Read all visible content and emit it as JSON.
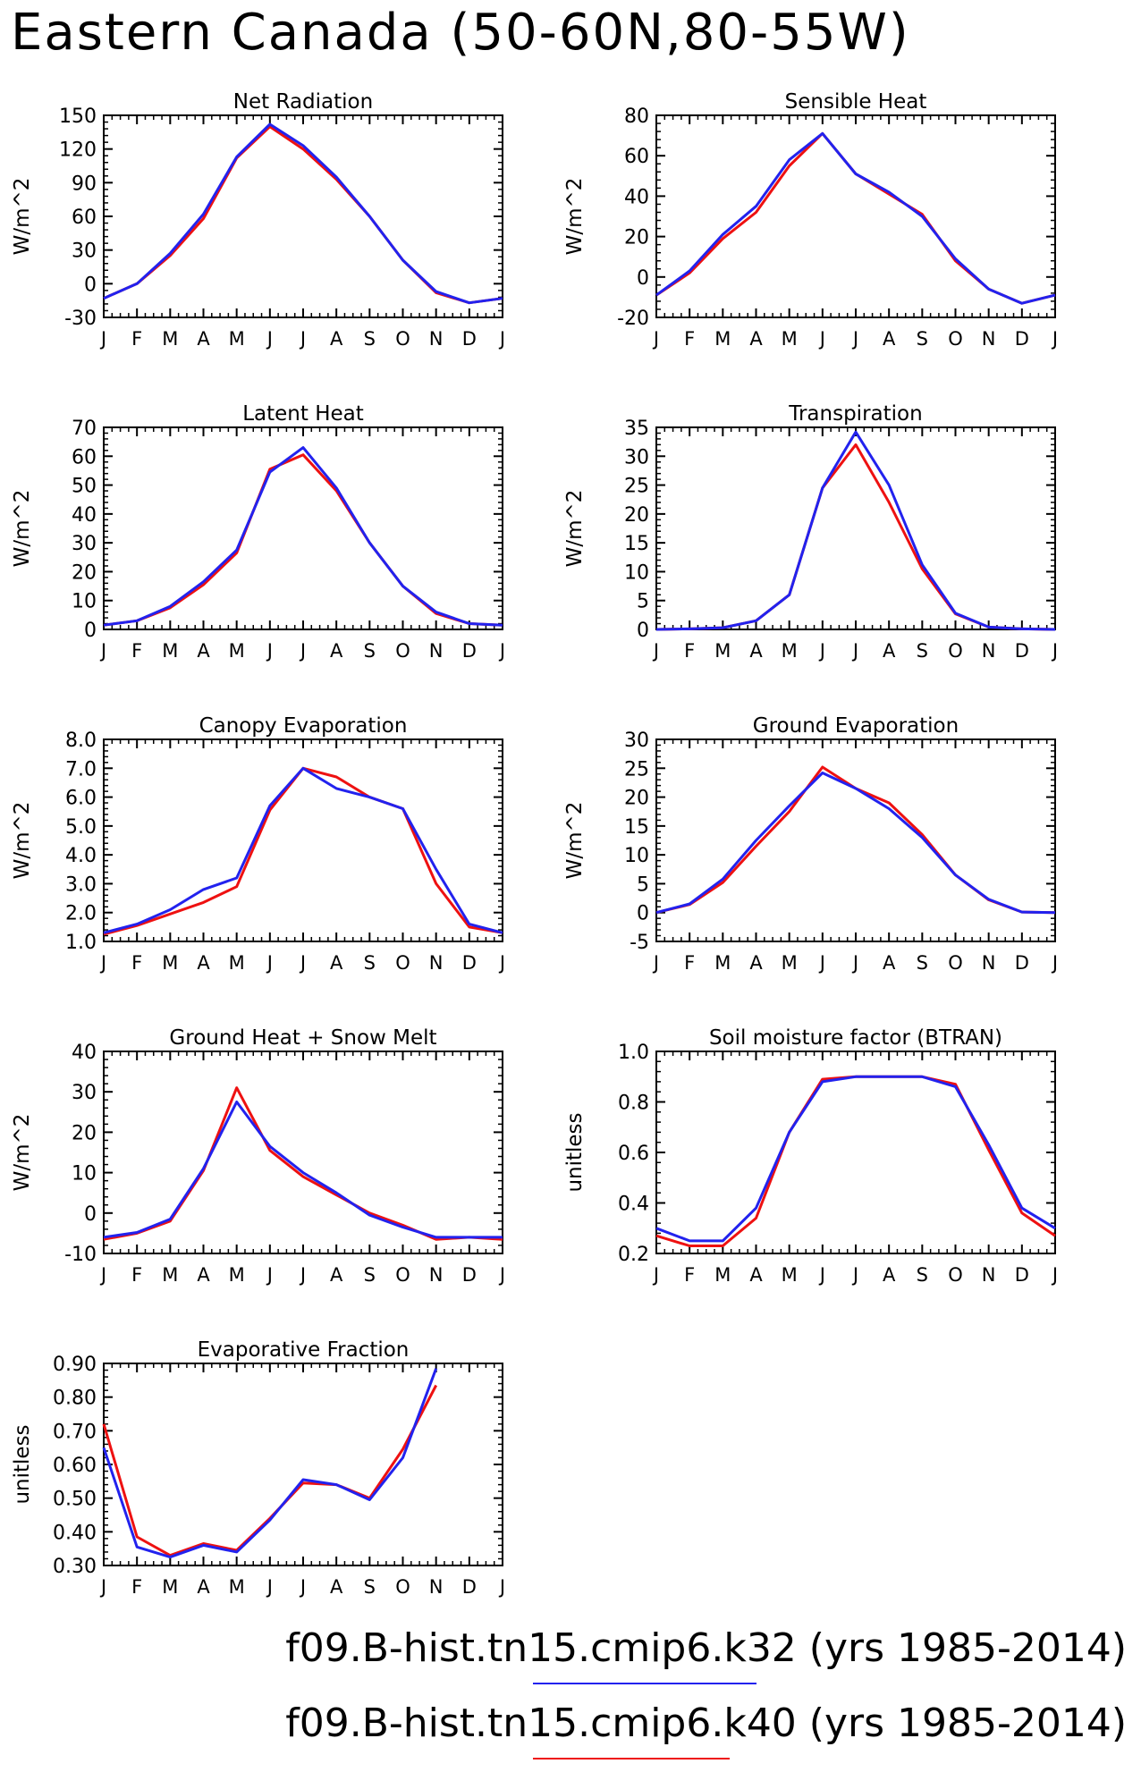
{
  "title": "Eastern Canada (50-60N,80-55W)",
  "legend": [
    {
      "label": "f09.B-hist.tn15.cmip6.k32 (yrs 1985-2014)",
      "color": "#2222ee"
    },
    {
      "label": "f09.B-hist.tn15.cmip6.k40 (yrs 1985-2014)",
      "color": "#ee1111"
    }
  ],
  "chart_data": [
    {
      "type": "line",
      "title": "Net Radiation",
      "ylabel": "W/m^2",
      "categories": [
        "J",
        "F",
        "M",
        "A",
        "M",
        "J",
        "J",
        "A",
        "S",
        "O",
        "N",
        "D",
        "J"
      ],
      "ylim": [
        -30,
        150
      ],
      "yticks": [
        -30,
        0,
        30,
        60,
        90,
        120,
        150
      ],
      "ytick_labels": [
        "-30",
        "0",
        "30",
        "60",
        "90",
        "120",
        "150"
      ],
      "series": [
        {
          "color": "#ee1111",
          "values": [
            -13,
            0,
            25,
            58,
            112,
            140,
            120,
            93,
            60,
            21,
            -8,
            -17,
            -13
          ]
        },
        {
          "color": "#2222ee",
          "values": [
            -13,
            0,
            27,
            62,
            113,
            142,
            123,
            95,
            60,
            21,
            -7,
            -17,
            -13
          ]
        }
      ]
    },
    {
      "type": "line",
      "title": "Sensible Heat",
      "ylabel": "W/m^2",
      "categories": [
        "J",
        "F",
        "M",
        "A",
        "M",
        "J",
        "J",
        "A",
        "S",
        "O",
        "N",
        "D",
        "J"
      ],
      "ylim": [
        -20,
        80
      ],
      "yticks": [
        -20,
        0,
        20,
        40,
        60,
        80
      ],
      "ytick_labels": [
        "-20",
        "0",
        "20",
        "40",
        "60",
        "80"
      ],
      "series": [
        {
          "color": "#ee1111",
          "values": [
            -9,
            2,
            19,
            32,
            55,
            71,
            51,
            41,
            31,
            8,
            -6,
            -13,
            -9
          ]
        },
        {
          "color": "#2222ee",
          "values": [
            -9,
            3,
            21,
            35,
            58,
            71,
            51,
            42,
            30,
            9,
            -6,
            -13,
            -9
          ]
        }
      ]
    },
    {
      "type": "line",
      "title": "Latent Heat",
      "ylabel": "W/m^2",
      "categories": [
        "J",
        "F",
        "M",
        "A",
        "M",
        "J",
        "J",
        "A",
        "S",
        "O",
        "N",
        "D",
        "J"
      ],
      "ylim": [
        0,
        70
      ],
      "yticks": [
        0,
        10,
        20,
        30,
        40,
        50,
        60,
        70
      ],
      "ytick_labels": [
        "0",
        "10",
        "20",
        "30",
        "40",
        "50",
        "60",
        "70"
      ],
      "series": [
        {
          "color": "#ee1111",
          "values": [
            1.5,
            3,
            7.5,
            15.5,
            26.5,
            55.5,
            60.5,
            48,
            30,
            15,
            5.5,
            2,
            1.5
          ]
        },
        {
          "color": "#2222ee",
          "values": [
            1.5,
            3,
            8,
            16.5,
            27.5,
            54.5,
            63,
            49,
            30,
            15,
            6,
            2,
            1.5
          ]
        }
      ]
    },
    {
      "type": "line",
      "title": "Transpiration",
      "ylabel": "W/m^2",
      "categories": [
        "J",
        "F",
        "M",
        "A",
        "M",
        "J",
        "J",
        "A",
        "S",
        "O",
        "N",
        "D",
        "J"
      ],
      "ylim": [
        0,
        35
      ],
      "yticks": [
        0,
        5,
        10,
        15,
        20,
        25,
        30,
        35
      ],
      "ytick_labels": [
        "0",
        "5",
        "10",
        "15",
        "20",
        "25",
        "30",
        "35"
      ],
      "series": [
        {
          "color": "#ee1111",
          "values": [
            0,
            0.1,
            0.3,
            1.5,
            6,
            24.5,
            32,
            22,
            10.5,
            2.7,
            0.4,
            0.1,
            0
          ]
        },
        {
          "color": "#2222ee",
          "values": [
            0,
            0.1,
            0.3,
            1.5,
            6,
            24.5,
            34.2,
            25,
            11.2,
            2.8,
            0.4,
            0.1,
            0
          ]
        }
      ]
    },
    {
      "type": "line",
      "title": "Canopy Evaporation",
      "ylabel": "W/m^2",
      "categories": [
        "J",
        "F",
        "M",
        "A",
        "M",
        "J",
        "J",
        "A",
        "S",
        "O",
        "N",
        "D",
        "J"
      ],
      "ylim": [
        1.0,
        8.0
      ],
      "yticks": [
        1,
        2,
        3,
        4,
        5,
        6,
        7,
        8
      ],
      "ytick_labels": [
        "1.0",
        "2.0",
        "3.0",
        "4.0",
        "5.0",
        "6.0",
        "7.0",
        "8.0"
      ],
      "series": [
        {
          "color": "#ee1111",
          "values": [
            1.25,
            1.55,
            1.95,
            2.35,
            2.9,
            5.55,
            7.0,
            6.7,
            6.0,
            5.6,
            3.0,
            1.5,
            1.3
          ]
        },
        {
          "color": "#2222ee",
          "values": [
            1.3,
            1.6,
            2.1,
            2.8,
            3.2,
            5.7,
            7.0,
            6.3,
            6.0,
            5.6,
            3.5,
            1.6,
            1.3
          ]
        }
      ]
    },
    {
      "type": "line",
      "title": "Ground Evaporation",
      "ylabel": "W/m^2",
      "categories": [
        "J",
        "F",
        "M",
        "A",
        "M",
        "J",
        "J",
        "A",
        "S",
        "O",
        "N",
        "D",
        "J"
      ],
      "ylim": [
        -5,
        30
      ],
      "yticks": [
        -5,
        0,
        5,
        10,
        15,
        20,
        25,
        30
      ],
      "ytick_labels": [
        "-5",
        "0",
        "5",
        "10",
        "15",
        "20",
        "25",
        "30"
      ],
      "series": [
        {
          "color": "#ee1111",
          "values": [
            0,
            1.4,
            5.2,
            11.5,
            17.5,
            25.2,
            21.5,
            19,
            13.5,
            6.5,
            2.2,
            0.1,
            0
          ]
        },
        {
          "color": "#2222ee",
          "values": [
            0,
            1.5,
            5.8,
            12.5,
            18.5,
            24.2,
            21.5,
            18,
            13,
            6.5,
            2.3,
            0.1,
            0
          ]
        }
      ]
    },
    {
      "type": "line",
      "title": "Ground Heat + Snow Melt",
      "ylabel": "W/m^2",
      "categories": [
        "J",
        "F",
        "M",
        "A",
        "M",
        "J",
        "J",
        "A",
        "S",
        "O",
        "N",
        "D",
        "J"
      ],
      "ylim": [
        -10,
        40
      ],
      "yticks": [
        -10,
        0,
        10,
        20,
        30,
        40
      ],
      "ytick_labels": [
        "-10",
        "0",
        "10",
        "20",
        "30",
        "40"
      ],
      "series": [
        {
          "color": "#ee1111",
          "values": [
            -6.5,
            -5,
            -2,
            10.5,
            31,
            15.5,
            9,
            4.5,
            0,
            -3,
            -6.5,
            -6,
            -6.5
          ]
        },
        {
          "color": "#2222ee",
          "values": [
            -6,
            -4.8,
            -1.5,
            11,
            27.5,
            16.5,
            10,
            5,
            -0.5,
            -3.5,
            -6,
            -6,
            -6
          ]
        }
      ]
    },
    {
      "type": "line",
      "title": "Soil moisture factor (BTRAN)",
      "ylabel": "unitless",
      "categories": [
        "J",
        "F",
        "M",
        "A",
        "M",
        "J",
        "J",
        "A",
        "S",
        "O",
        "N",
        "D",
        "J"
      ],
      "ylim": [
        0.2,
        1.0
      ],
      "yticks": [
        0.2,
        0.4,
        0.6,
        0.8,
        1.0
      ],
      "ytick_labels": [
        "0.2",
        "0.4",
        "0.6",
        "0.8",
        "1.0"
      ],
      "series": [
        {
          "color": "#ee1111",
          "values": [
            0.27,
            0.23,
            0.23,
            0.34,
            0.68,
            0.89,
            0.9,
            0.9,
            0.9,
            0.87,
            0.61,
            0.36,
            0.27
          ]
        },
        {
          "color": "#2222ee",
          "values": [
            0.3,
            0.25,
            0.25,
            0.38,
            0.68,
            0.88,
            0.9,
            0.9,
            0.9,
            0.86,
            0.63,
            0.38,
            0.3
          ]
        }
      ]
    },
    {
      "type": "line",
      "title": "Evaporative Fraction",
      "ylabel": "unitless",
      "categories": [
        "J",
        "F",
        "M",
        "A",
        "M",
        "J",
        "J",
        "A",
        "S",
        "O",
        "N",
        "D",
        "J"
      ],
      "ylim": [
        0.3,
        0.9
      ],
      "yticks": [
        0.3,
        0.4,
        0.5,
        0.6,
        0.7,
        0.8,
        0.9
      ],
      "ytick_labels": [
        "0.30",
        "0.40",
        "0.50",
        "0.60",
        "0.70",
        "0.80",
        "0.90"
      ],
      "series": [
        {
          "color": "#ee1111",
          "values": [
            0.72,
            0.385,
            0.33,
            0.365,
            0.345,
            0.44,
            0.545,
            0.54,
            0.5,
            0.645,
            0.835,
            null,
            null
          ]
        },
        {
          "color": "#2222ee",
          "values": [
            0.65,
            0.355,
            0.325,
            0.36,
            0.34,
            0.435,
            0.555,
            0.54,
            0.495,
            0.62,
            0.885,
            null,
            null
          ]
        }
      ]
    }
  ]
}
